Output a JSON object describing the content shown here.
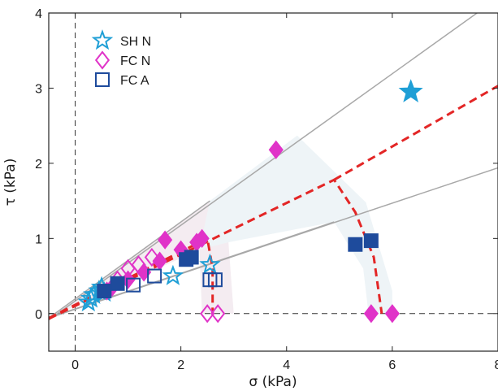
{
  "chart_data": {
    "type": "scatter",
    "xlabel": "σ (kPa)",
    "ylabel": "τ (kPa)",
    "xlim": [
      -0.5,
      8
    ],
    "ylim": [
      -0.5,
      4
    ],
    "xticks": [
      0,
      2,
      4,
      6,
      8
    ],
    "yticks": [
      0,
      1,
      2,
      3,
      4
    ],
    "xtick_labels": [
      "0",
      "2",
      "4",
      "6",
      "8"
    ],
    "ytick_labels": [
      "0",
      "1",
      "2",
      "3",
      "4"
    ],
    "grid": false,
    "legend_position": "top-left",
    "zero_lines": {
      "x0": true,
      "y0": true,
      "style": "dashed"
    },
    "series": [
      {
        "name": "SH N",
        "marker": "star",
        "color": "#1f9fd6",
        "points_open": [
          [
            0.25,
            0.15
          ],
          [
            0.3,
            0.2
          ],
          [
            0.35,
            0.25
          ],
          [
            0.45,
            0.3
          ],
          [
            0.5,
            0.35
          ],
          [
            0.55,
            0.28
          ],
          [
            1.85,
            0.5
          ],
          [
            2.55,
            0.65
          ]
        ],
        "points_filled": [
          [
            6.35,
            2.95
          ]
        ]
      },
      {
        "name": "FC N",
        "marker": "diamond",
        "color": "#e033c8",
        "points_open": [
          [
            0.8,
            0.45
          ],
          [
            1.0,
            0.6
          ],
          [
            1.2,
            0.65
          ],
          [
            1.45,
            0.75
          ],
          [
            2.5,
            0.0
          ],
          [
            2.7,
            0.0
          ]
        ],
        "points_filled": [
          [
            0.6,
            0.3
          ],
          [
            0.7,
            0.35
          ],
          [
            1.0,
            0.45
          ],
          [
            1.3,
            0.55
          ],
          [
            1.6,
            0.7
          ],
          [
            1.7,
            0.98
          ],
          [
            2.0,
            0.85
          ],
          [
            2.3,
            0.95
          ],
          [
            2.4,
            1.0
          ],
          [
            3.8,
            2.18
          ],
          [
            5.6,
            0.0
          ],
          [
            6.0,
            0.0
          ]
        ]
      },
      {
        "name": "FC A",
        "marker": "square",
        "color": "#1e4b9c",
        "points_open": [
          [
            1.1,
            0.38
          ],
          [
            1.5,
            0.5
          ],
          [
            2.55,
            0.45
          ],
          [
            2.65,
            0.45
          ]
        ],
        "points_filled": [
          [
            0.55,
            0.3
          ],
          [
            0.8,
            0.4
          ],
          [
            2.1,
            0.72
          ],
          [
            2.2,
            0.75
          ],
          [
            5.3,
            0.92
          ],
          [
            5.6,
            0.97
          ]
        ]
      }
    ],
    "lines": [
      {
        "kind": "gray-envelope",
        "color": "#a8a8a8",
        "points": [
          [
            -0.5,
            -0.085
          ],
          [
            8,
            4.2
          ]
        ]
      },
      {
        "kind": "gray-envelope",
        "color": "#a8a8a8",
        "points": [
          [
            -0.5,
            -0.06
          ],
          [
            8,
            1.94
          ]
        ]
      },
      {
        "kind": "gray-envelope",
        "color": "#a8a8a8",
        "points": [
          [
            -0.5,
            -0.055
          ],
          [
            4.9,
            1.22
          ]
        ]
      },
      {
        "kind": "gray-envelope",
        "color": "#a8a8a8",
        "points": [
          [
            -0.5,
            -0.06
          ],
          [
            2.55,
            1.5
          ]
        ]
      },
      {
        "kind": "red-fit",
        "color": "#e32626",
        "points": [
          [
            -0.5,
            -0.06
          ],
          [
            2.5,
            1.0
          ],
          [
            2.6,
            0.6
          ],
          [
            2.6,
            0.0
          ]
        ]
      },
      {
        "kind": "red-fit",
        "color": "#e32626",
        "points": [
          [
            -0.5,
            -0.07
          ],
          [
            4.9,
            1.78
          ],
          [
            5.3,
            1.35
          ],
          [
            5.65,
            0.75
          ],
          [
            5.8,
            0.0
          ]
        ]
      },
      {
        "kind": "red-fit",
        "color": "#e32626",
        "points": [
          [
            4.9,
            1.78
          ],
          [
            8,
            3.03
          ]
        ]
      }
    ],
    "shaded_regions": [
      {
        "color": "#f4ecf1",
        "polygon": [
          [
            -0.5,
            -0.06
          ],
          [
            2.55,
            1.5
          ],
          [
            2.9,
            0.95
          ],
          [
            3.0,
            0.0
          ],
          [
            2.4,
            0.0
          ],
          [
            2.35,
            0.85
          ]
        ]
      },
      {
        "color": "#eef4f7",
        "polygon": [
          [
            2.35,
            0.85
          ],
          [
            2.55,
            1.5
          ],
          [
            4.2,
            2.37
          ],
          [
            5.5,
            1.48
          ],
          [
            6.0,
            0.3
          ],
          [
            6.0,
            0.0
          ],
          [
            5.55,
            0.0
          ],
          [
            5.45,
            0.6
          ],
          [
            4.9,
            1.22
          ],
          [
            2.9,
            0.95
          ]
        ]
      }
    ]
  }
}
